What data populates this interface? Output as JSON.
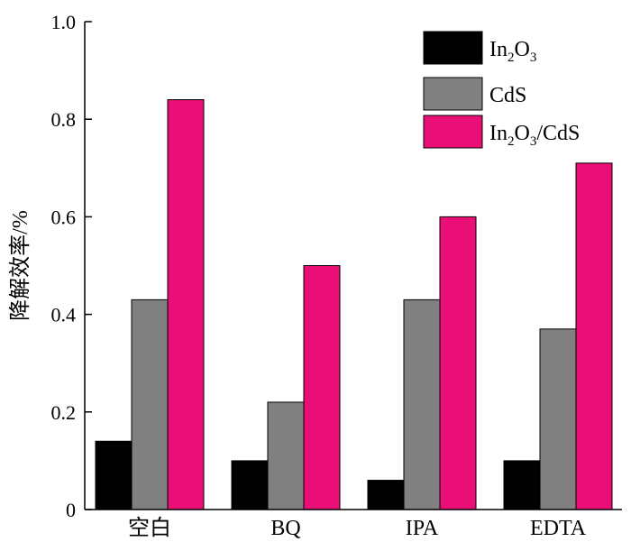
{
  "chart_data": {
    "type": "bar",
    "title": "",
    "xlabel": "",
    "ylabel": "降解效率/%",
    "ylim": [
      0,
      1.0
    ],
    "yticks": [
      "0",
      "0.2",
      "0.4",
      "0.6",
      "0.8",
      "1.0"
    ],
    "yticks_values": [
      0,
      0.2,
      0.4,
      0.6,
      0.8,
      1.0
    ],
    "categories": [
      "空白",
      "BQ",
      "IPA",
      "EDTA"
    ],
    "series": [
      {
        "name": "In2O3",
        "label_parts": [
          "In",
          "2",
          "O",
          "3",
          ""
        ],
        "color": "#000000",
        "values": [
          0.14,
          0.1,
          0.06,
          0.1
        ]
      },
      {
        "name": "CdS",
        "label_parts": [
          "CdS",
          "",
          "",
          "",
          ""
        ],
        "color": "#808080",
        "values": [
          0.43,
          0.22,
          0.43,
          0.37
        ]
      },
      {
        "name": "In2O3/CdS",
        "label_parts": [
          "In",
          "2",
          "O",
          "3",
          "/CdS"
        ],
        "color": "#ea0f77",
        "values": [
          0.84,
          0.5,
          0.6,
          0.71
        ]
      }
    ],
    "legend_position": "top-right",
    "grid": false
  }
}
